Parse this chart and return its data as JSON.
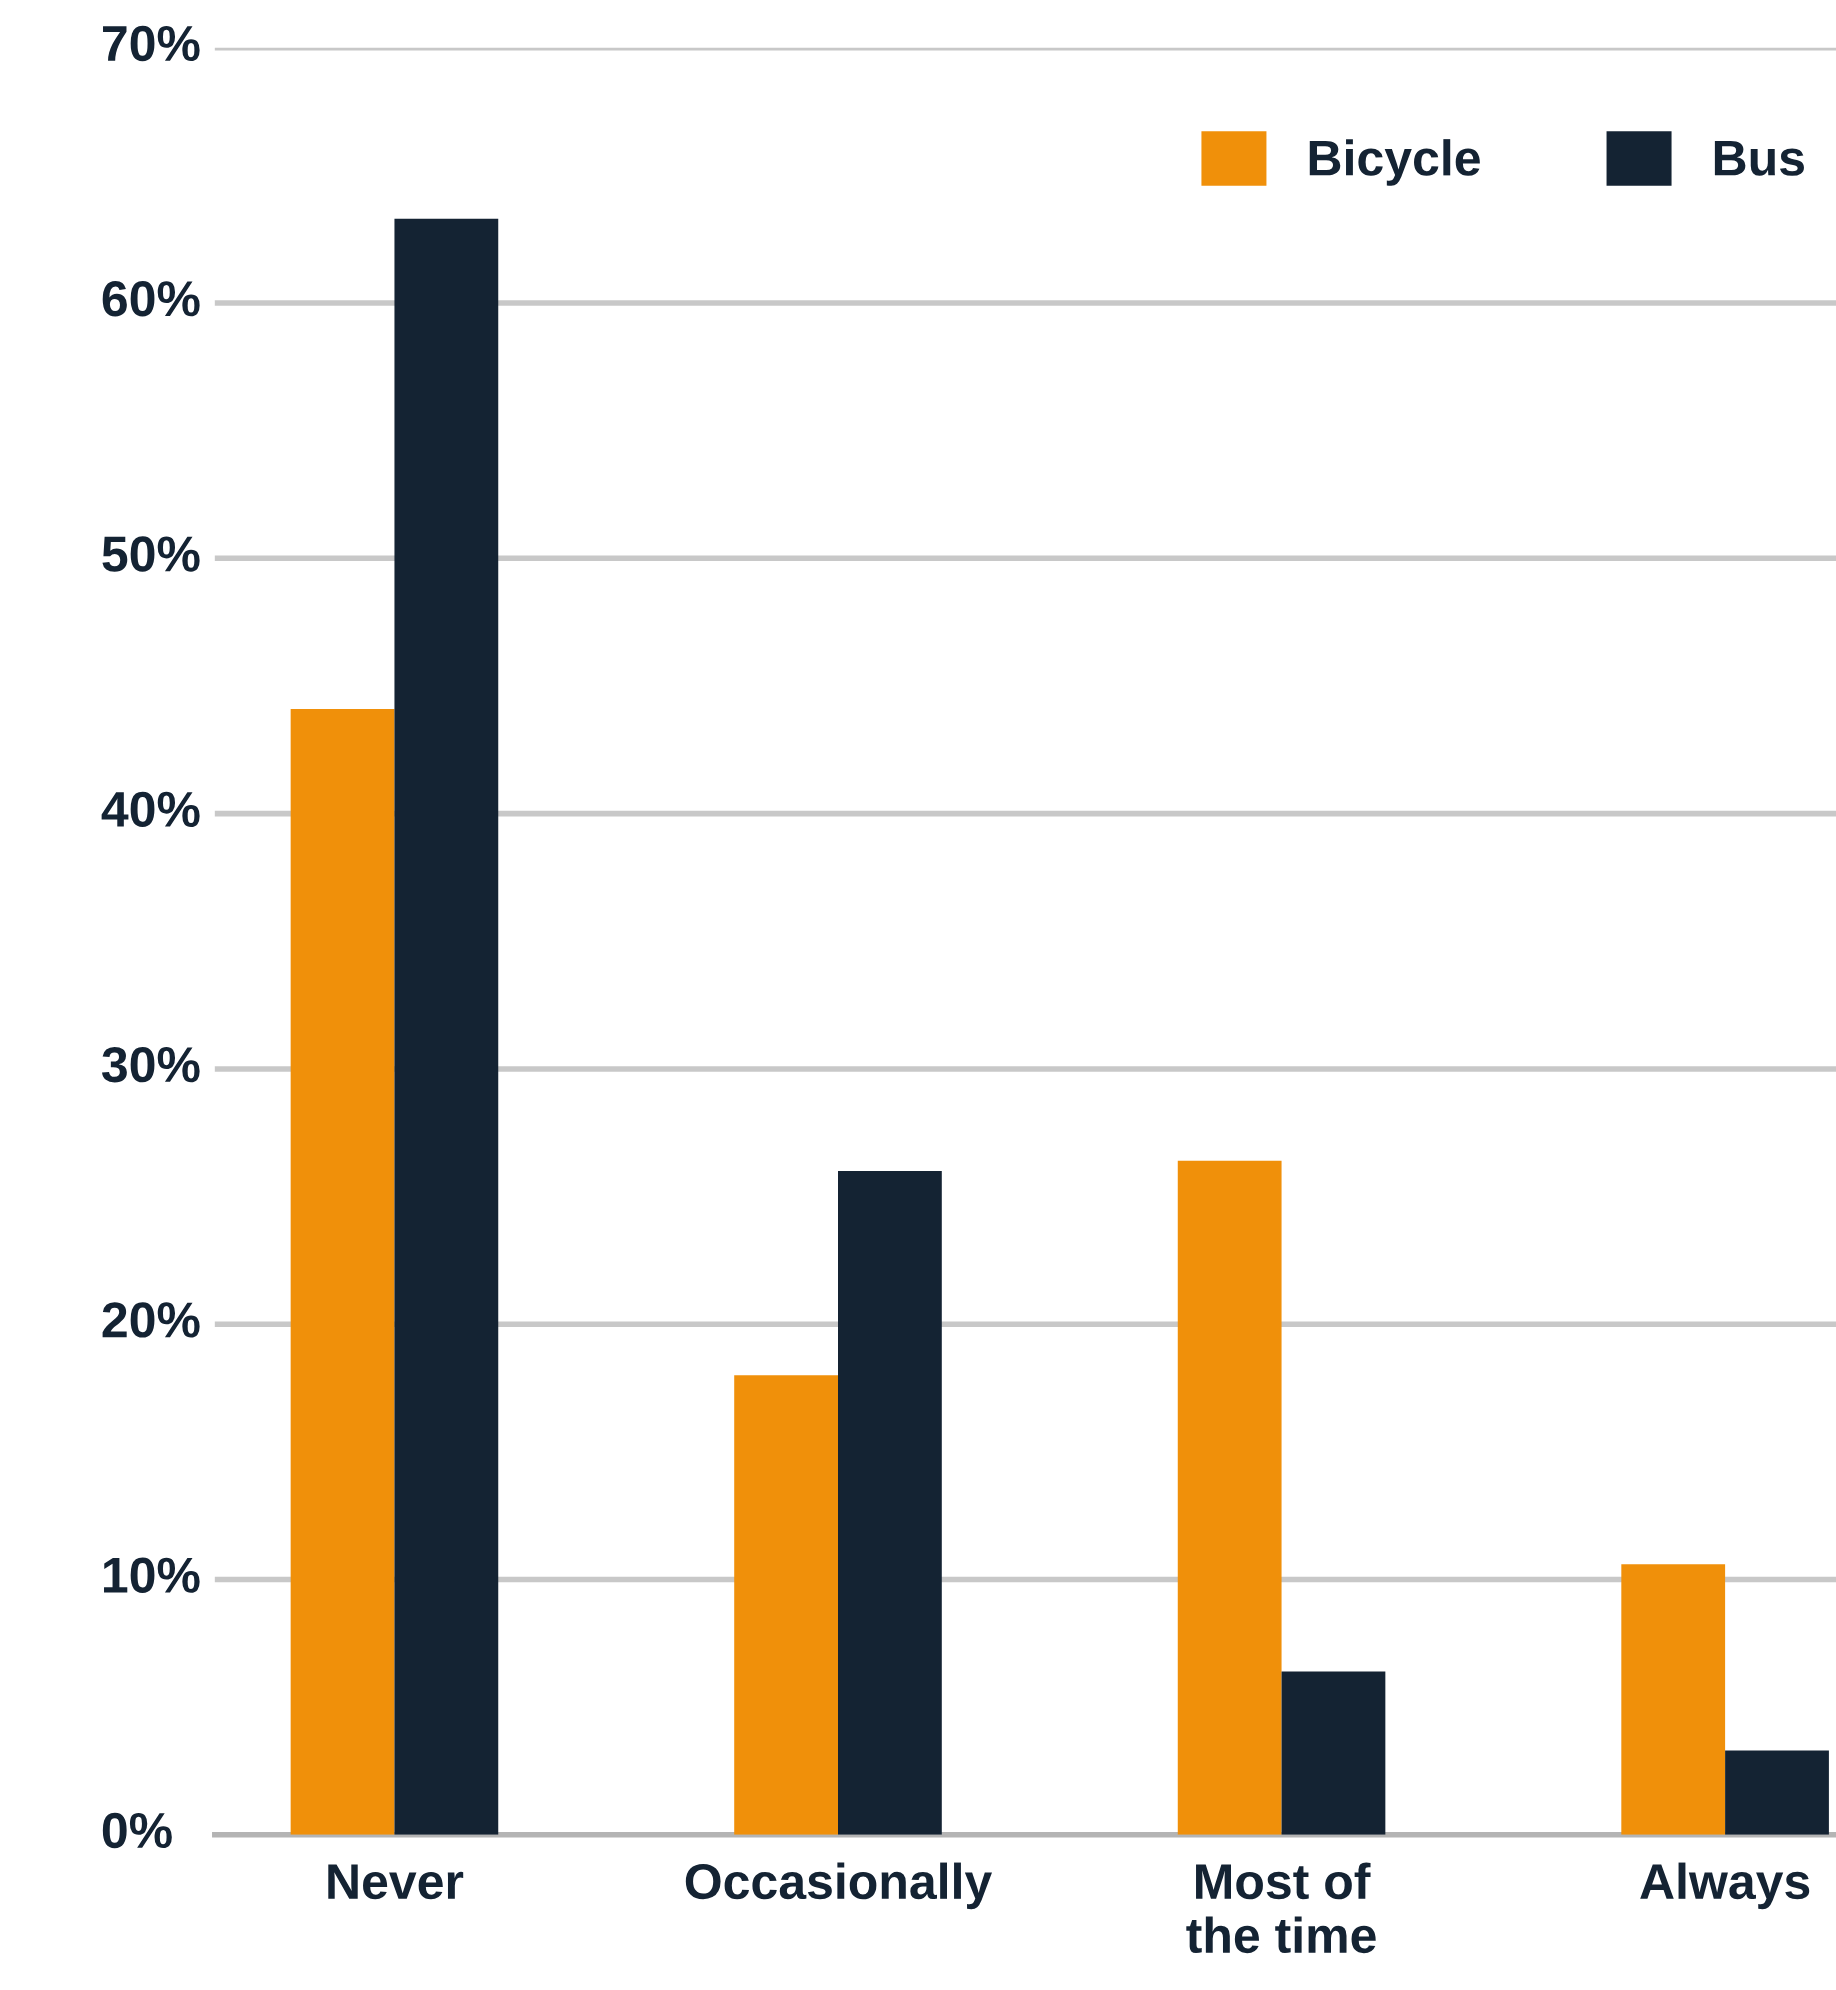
{
  "chart_data": {
    "type": "bar",
    "categories": [
      "Never",
      "Occasionally",
      "Most of\nthe time",
      "Always"
    ],
    "series": [
      {
        "name": "Bicycle",
        "color": "#f0900a",
        "values": [
          44.1,
          18.0,
          26.4,
          10.6
        ]
      },
      {
        "name": "Bus",
        "color": "#142333",
        "values": [
          63.3,
          26.0,
          6.4,
          3.3
        ]
      }
    ],
    "ylim": [
      0,
      70
    ],
    "yticks": [
      {
        "value": 0,
        "label": "0%"
      },
      {
        "value": 10,
        "label": "10%"
      },
      {
        "value": 20,
        "label": "20%"
      },
      {
        "value": 30,
        "label": "30%"
      },
      {
        "value": 40,
        "label": "40%"
      },
      {
        "value": 50,
        "label": "50%"
      },
      {
        "value": 60,
        "label": "60%"
      },
      {
        "value": 70,
        "label": "70%"
      }
    ],
    "grid": "y",
    "legend": "top right"
  }
}
